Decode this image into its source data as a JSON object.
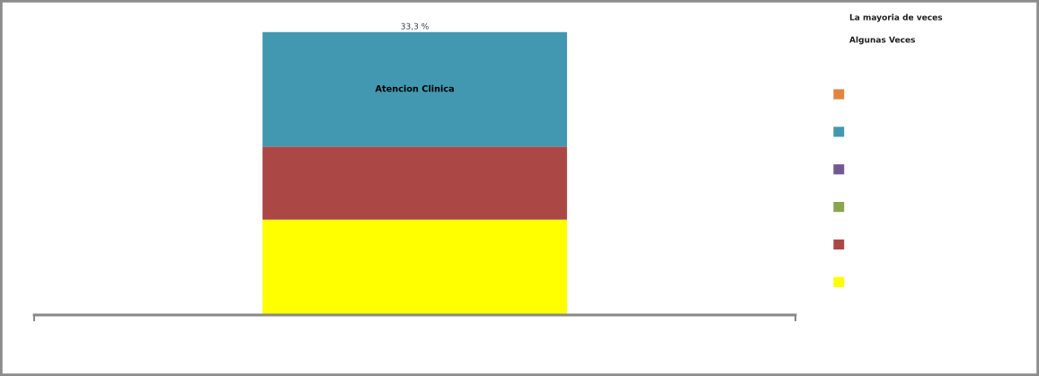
{
  "chart_data": {
    "type": "bar",
    "stacked": true,
    "categories": [
      null
    ],
    "series": [
      {
        "color": "#ffff00",
        "values": [
          27.8
        ]
      },
      {
        "color": "#ab4846",
        "values": [
          21.3
        ]
      },
      {
        "color": "#89a54e",
        "values": [
          null
        ]
      },
      {
        "color": "#705893",
        "values": [
          null
        ]
      },
      {
        "name": "Atencion Clinica",
        "color": "#4298b0",
        "values": [
          33.3
        ],
        "value_labels": [
          "33,3 %"
        ]
      },
      {
        "color": "#e28540",
        "values": [
          null
        ]
      }
    ],
    "legend": "right",
    "annotations": [
      "La mayoria de veces",
      "Algunas Veces"
    ]
  }
}
